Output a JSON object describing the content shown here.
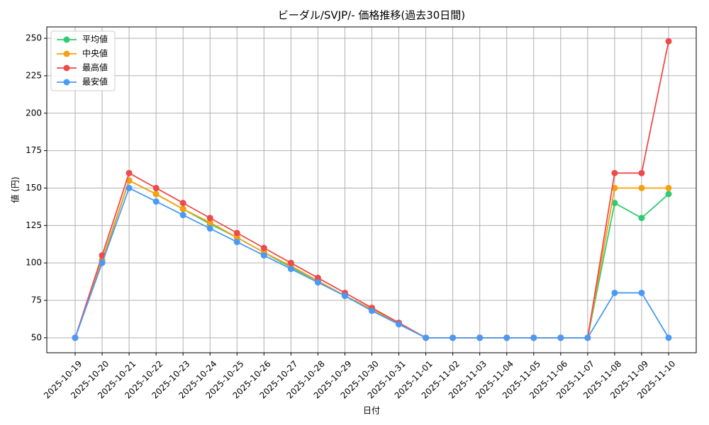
{
  "chart_data": {
    "type": "line",
    "title": "ビーダル/SVJP/- 価格推移(過去30日間)",
    "x_label": "日付",
    "y_label": "値 (円)",
    "categories": [
      "2025-10-19",
      "2025-10-20",
      "2025-10-21",
      "2025-10-22",
      "2025-10-23",
      "2025-10-24",
      "2025-10-25",
      "2025-10-26",
      "2025-10-27",
      "2025-10-28",
      "2025-10-29",
      "2025-10-30",
      "2025-10-31",
      "2025-11-01",
      "2025-11-02",
      "2025-11-03",
      "2025-11-04",
      "2025-11-05",
      "2025-11-06",
      "2025-11-07",
      "2025-11-08",
      "2025-11-09",
      "2025-11-10"
    ],
    "series": [
      {
        "name": "平均値",
        "color": "#2ecc71",
        "values": [
          50,
          101,
          155,
          146,
          136,
          126,
          117,
          107,
          97,
          88,
          78,
          69,
          59.5,
          50,
          50,
          50,
          50,
          50,
          50,
          50,
          140,
          130,
          146
        ]
      },
      {
        "name": "中央値",
        "color": "#f5a00f",
        "values": [
          50,
          102,
          155,
          146,
          136,
          127,
          117,
          107,
          98,
          88,
          78,
          69,
          60,
          50,
          50,
          50,
          50,
          50,
          50,
          50,
          150,
          150,
          150
        ]
      },
      {
        "name": "最高値",
        "color": "#ef4a4a",
        "values": [
          50,
          105,
          160,
          150,
          140,
          130,
          120,
          110,
          100,
          90,
          80,
          70,
          60,
          50,
          50,
          50,
          50,
          50,
          50,
          50,
          160,
          160,
          248
        ]
      },
      {
        "name": "最安値",
        "color": "#4a9af5",
        "values": [
          50,
          100,
          150,
          141,
          132,
          123,
          114,
          105,
          96,
          87,
          78,
          68,
          59,
          50,
          50,
          50,
          50,
          50,
          50,
          50,
          80,
          80,
          50
        ]
      }
    ],
    "ylim": [
      40,
      257.6
    ],
    "yticks": [
      50,
      75,
      100,
      125,
      150,
      175,
      200,
      225,
      250
    ],
    "grid": true,
    "legend": "upper-left"
  }
}
